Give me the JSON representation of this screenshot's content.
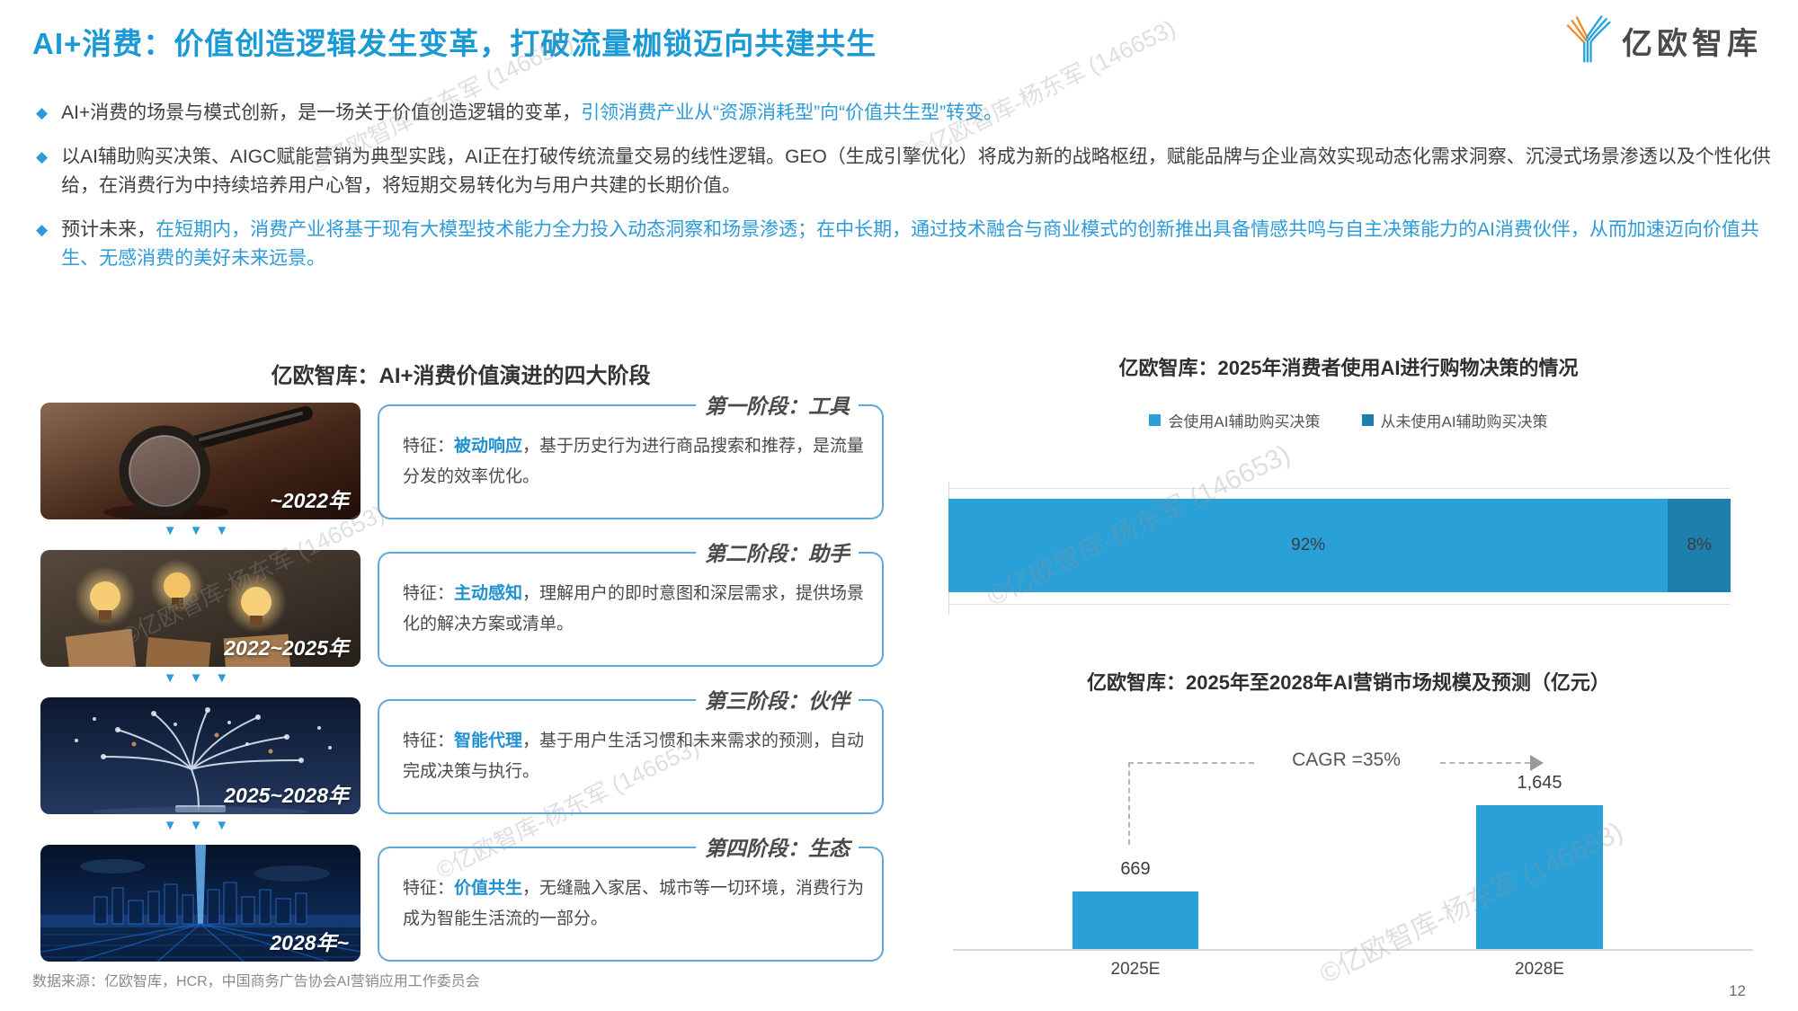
{
  "slide": {
    "title": "AI+消费：价值创造逻辑发生变革，打破流量枷锁迈向共建共生",
    "logo_text": "亿欧智库",
    "page_number": "12",
    "source": "数据来源：亿欧智库，HCR，中国商务广告协会AI营销应用工作委员会",
    "watermark": "©亿欧智库-杨东军 (146653)",
    "accent_color": "#1a9ad4"
  },
  "bullets": [
    {
      "plain": "AI+消费的场景与模式创新，是一场关于价值创造逻辑的变革，",
      "highlight": "引领消费产业从“资源消耗型”向“价值共生型”转变。"
    },
    {
      "plain": "以AI辅助购买决策、AIGC赋能营销为典型实践，AI正在打破传统流量交易的线性逻辑。GEO（生成引擎优化）将成为新的战略枢纽，赋能品牌与企业高效实现动态化需求洞察、沉浸式场景渗透以及个性化供给，在消费行为中持续培养用户心智，将短期交易转化为与用户共建的长期价值。",
      "highlight": ""
    },
    {
      "plain": "预计未来，",
      "highlight": "在短期内，消费产业将基于现有大模型技术能力全力投入动态洞察和场景渗透；在中长期，通过技术融合与商业模式的创新推出具备情感共鸣与自主决策能力的AI消费伙伴，从而加速迈向价值共生、无感消费的美好未来远景。"
    }
  ],
  "stages_section": {
    "title": "亿欧智库：AI+消费价值演进的四大阶段",
    "feature_prefix": "特征：",
    "stages": [
      {
        "header": "第一阶段：工具",
        "period": "~2022年",
        "keyword": "被动响应",
        "desc": "，基于历史行为进行商品搜索和推荐，是流量分发的效率优化。",
        "image": "magnifying-glass-photo"
      },
      {
        "header": "第二阶段：助手",
        "period": "2022~2025年",
        "keyword": "主动感知",
        "desc": "，理解用户的即时意图和深层需求，提供场景化的解决方案或清单。",
        "image": "light-bulbs-photo"
      },
      {
        "header": "第三阶段：伙伴",
        "period": "2025~2028年",
        "keyword": "智能代理",
        "desc": "，基于用户生活习惯和未来需求的预测，自动完成决策与执行。",
        "image": "neural-tree-photo"
      },
      {
        "header": "第四阶段：生态",
        "period": "2028年~",
        "keyword": "价值共生",
        "desc": "，无缝融入家居、城市等一切环境，消费行为成为智能生活流的一部分。",
        "image": "smart-city-photo"
      }
    ]
  },
  "chart_data": [
    {
      "type": "bar",
      "subtype": "horizontal-stacked",
      "title": "亿欧智库：2025年消费者使用AI进行购物决策的情况",
      "unit": "%",
      "legend_position": "top",
      "grid": true,
      "series": [
        {
          "name": "会使用AI辅助购买决策",
          "value": 92,
          "label": "92%",
          "color": "#29a0d8"
        },
        {
          "name": "从未使用AI辅助购买决策",
          "value": 8,
          "label": "8%",
          "color": "#1c7fad"
        }
      ]
    },
    {
      "type": "bar",
      "title": "亿欧智库：2025年至2028年AI营销市场规模及预测（亿元）",
      "categories": [
        "2025E",
        "2028E"
      ],
      "values": [
        669,
        1645
      ],
      "value_labels": [
        "669",
        "1,645"
      ],
      "annotation": "CAGR =35%",
      "ylabel": "亿元",
      "grid": false,
      "bar_color": "#29a0d8"
    }
  ]
}
